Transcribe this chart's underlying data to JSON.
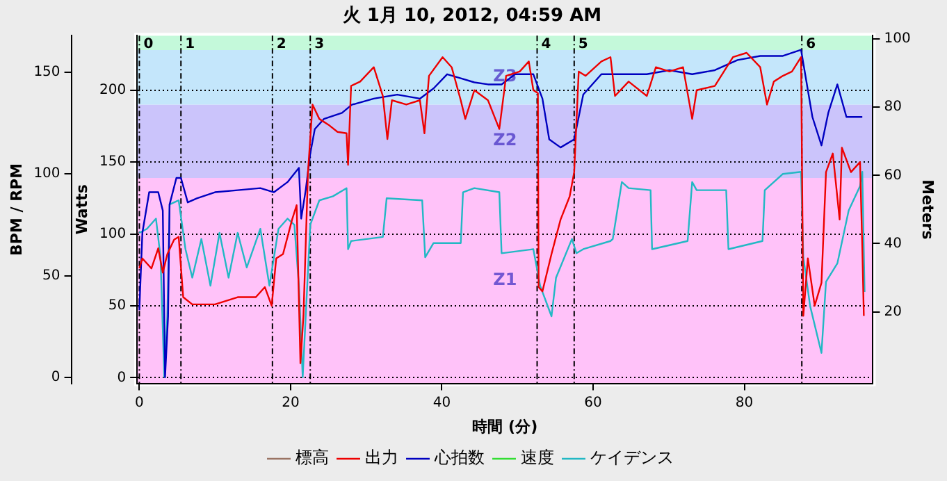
{
  "chart_data": {
    "type": "line",
    "title": "火 1月 10, 2012, 04:59 AM",
    "xlabel": "時間 (分)",
    "ylabel": "Watts",
    "y2label": "Meters",
    "y3label": "BPM / RPM",
    "xlim": [
      -0.3,
      97
    ],
    "xticks": [
      0,
      20,
      40,
      60,
      80
    ],
    "ylim": [
      -4,
      238
    ],
    "yticks": [
      0,
      50,
      100,
      150,
      200
    ],
    "y2lim": [
      -1,
      101
    ],
    "y2ticks": [
      20,
      40,
      60,
      80,
      100
    ],
    "y3lim": [
      -3,
      168
    ],
    "y3ticks": [
      0,
      50,
      100,
      150
    ],
    "grid": "y",
    "legend": "bottom",
    "line_style": "solid",
    "bands": [
      {
        "axis": "y",
        "from": -4,
        "to": 139,
        "label": "Z1",
        "color": "#ffc2f9"
      },
      {
        "axis": "y",
        "from": 139,
        "to": 190,
        "label": "Z2",
        "color": "#cbc4fb"
      },
      {
        "axis": "y",
        "from": 190,
        "to": 228,
        "label": "Z3",
        "color": "#c4e6fb"
      },
      {
        "axis": "y",
        "from": 228,
        "to": 238,
        "label": null,
        "color": "#c4f9da"
      }
    ],
    "ref_lines": [
      {
        "axis": "x",
        "value": 0
      },
      {
        "axis": "x",
        "value": 5.5
      },
      {
        "axis": "x",
        "value": 17.6
      },
      {
        "axis": "x",
        "value": 22.6
      },
      {
        "axis": "x",
        "value": 52.6
      },
      {
        "axis": "x",
        "value": 57.5
      },
      {
        "axis": "x",
        "value": 87.6
      }
    ],
    "annotations": [
      {
        "text": "0",
        "x": 0,
        "y": 232
      },
      {
        "text": "1",
        "x": 5.5,
        "y": 232
      },
      {
        "text": "2",
        "x": 17.6,
        "y": 232
      },
      {
        "text": "3",
        "x": 22.6,
        "y": 232
      },
      {
        "text": "4",
        "x": 52.6,
        "y": 232
      },
      {
        "text": "5",
        "x": 57.5,
        "y": 232
      },
      {
        "text": "6",
        "x": 87.6,
        "y": 232
      }
    ],
    "series": [
      {
        "name": "標高",
        "color": "#9a7464",
        "axis": "y2"
      },
      {
        "name": "出力",
        "color": "#ee0000",
        "axis": "y",
        "x": [
          0.0,
          0.4,
          1.6,
          2.5,
          3.1,
          3.7,
          4.6,
          5.2,
          5.8,
          7.0,
          10.0,
          13.0,
          15.4,
          16.6,
          17.5,
          18.1,
          19.0,
          20.2,
          20.8,
          21.3,
          21.7,
          22.3,
          22.9,
          23.8,
          25.0,
          26.2,
          27.4,
          27.6,
          28.0,
          29.2,
          31.0,
          32.2,
          32.8,
          33.4,
          35.3,
          37.1,
          37.7,
          38.3,
          40.1,
          41.3,
          42.5,
          43.1,
          44.3,
          46.1,
          47.6,
          48.5,
          50.3,
          51.5,
          52.1,
          52.7,
          52.8,
          53.3,
          54.5,
          55.7,
          56.9,
          57.5,
          58.1,
          59.0,
          61.1,
          62.3,
          62.9,
          64.7,
          67.1,
          68.3,
          70.1,
          71.9,
          73.1,
          73.7,
          76.1,
          78.5,
          80.3,
          82.1,
          83.0,
          83.9,
          85.1,
          86.3,
          87.5,
          87.8,
          88.4,
          89.3,
          90.2,
          90.8,
          91.7,
          92.6,
          92.9,
          94.1,
          95.3,
          95.6,
          95.8
        ],
        "values": [
          76,
          83,
          76,
          90,
          73,
          86,
          96,
          98,
          56,
          51,
          51,
          56,
          56,
          63,
          50,
          83,
          86,
          110,
          120,
          10,
          43,
          143,
          190,
          180,
          176,
          171,
          170,
          148,
          203,
          206,
          216,
          196,
          166,
          193,
          190,
          193,
          170,
          210,
          223,
          216,
          193,
          180,
          200,
          193,
          173,
          210,
          213,
          220,
          200,
          198,
          63,
          60,
          86,
          110,
          126,
          143,
          213,
          210,
          220,
          223,
          196,
          206,
          196,
          216,
          213,
          216,
          180,
          200,
          203,
          223,
          226,
          216,
          190,
          206,
          210,
          213,
          223,
          43,
          83,
          50,
          66,
          143,
          156,
          110,
          160,
          143,
          150,
          90,
          43
        ]
      },
      {
        "name": "心拍数",
        "color": "#0000c0",
        "axis": "y3",
        "x": [
          0.0,
          0.4,
          1.3,
          2.5,
          3.1,
          3.4,
          3.8,
          4.0,
          4.9,
          5.5,
          6.4,
          7.6,
          10.0,
          13.0,
          16.0,
          17.8,
          19.6,
          21.1,
          21.4,
          22.0,
          22.6,
          23.2,
          24.4,
          26.8,
          28.1,
          31.0,
          34.1,
          37.1,
          38.9,
          40.7,
          42.5,
          44.3,
          46.1,
          47.9,
          49.7,
          52.1,
          53.3,
          54.2,
          55.7,
          57.5,
          58.7,
          61.1,
          67.1,
          70.1,
          73.1,
          76.1,
          79.1,
          82.1,
          85.1,
          87.5,
          89.0,
          90.2,
          91.1,
          92.3,
          93.5,
          95.6
        ],
        "values": [
          33,
          71,
          91,
          91,
          82,
          0,
          30,
          85,
          98,
          98,
          86,
          88,
          91,
          92,
          93,
          91,
          96,
          103,
          78,
          92,
          110,
          122,
          127,
          130,
          134,
          137,
          139,
          137,
          142,
          149,
          147,
          145,
          144,
          144,
          149,
          149,
          137,
          117,
          113,
          117,
          139,
          149,
          149,
          151,
          149,
          151,
          156,
          158,
          158,
          161,
          128,
          114,
          130,
          144,
          128,
          128
        ]
      },
      {
        "name": "速度",
        "color": "#33dd33",
        "axis": "y3"
      },
      {
        "name": "ケイデンス",
        "color": "#22b8c4",
        "axis": "y3",
        "x": [
          0.0,
          1.0,
          2.2,
          2.8,
          3.3,
          3.7,
          4.0,
          5.2,
          6.1,
          7.0,
          8.2,
          9.4,
          10.6,
          11.8,
          13.0,
          14.2,
          16.0,
          17.2,
          18.4,
          19.6,
          20.5,
          21.1,
          21.6,
          22.0,
          22.6,
          23.8,
          25.6,
          27.4,
          27.6,
          28.0,
          32.2,
          32.7,
          37.4,
          37.8,
          38.9,
          42.5,
          42.8,
          44.3,
          47.6,
          47.9,
          52.1,
          53.0,
          54.5,
          55.1,
          57.2,
          57.8,
          58.7,
          62.3,
          62.6,
          63.8,
          64.7,
          67.6,
          67.8,
          72.5,
          73.1,
          73.7,
          77.6,
          77.9,
          82.4,
          82.7,
          85.1,
          87.5,
          87.8,
          88.7,
          90.2,
          90.8,
          92.3,
          93.8,
          95.3,
          95.6,
          95.9
        ],
        "values": [
          71,
          73,
          78,
          59,
          0,
          30,
          85,
          87,
          63,
          49,
          68,
          45,
          71,
          49,
          71,
          54,
          73,
          45,
          73,
          78,
          75,
          45,
          0,
          30,
          75,
          87,
          89,
          93,
          63,
          67,
          69,
          88,
          87,
          59,
          66,
          66,
          91,
          93,
          91,
          61,
          63,
          45,
          30,
          49,
          68,
          61,
          63,
          67,
          68,
          96,
          93,
          92,
          63,
          67,
          96,
          92,
          92,
          63,
          67,
          92,
          100,
          101,
          59,
          35,
          12,
          47,
          56,
          82,
          94,
          101,
          42
        ]
      }
    ]
  }
}
